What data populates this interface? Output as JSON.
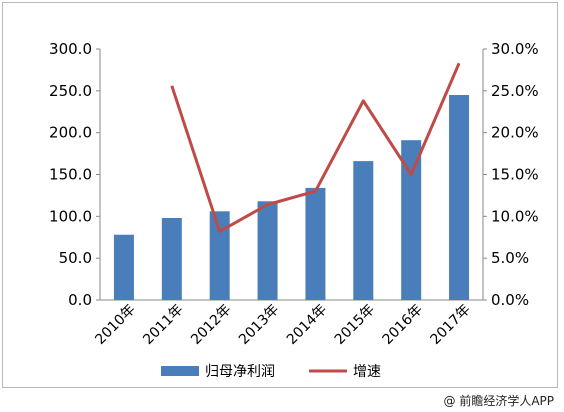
{
  "chart_data": {
    "type": "bar+line",
    "categories": [
      "2010年",
      "2011年",
      "2012年",
      "2013年",
      "2014年",
      "2015年",
      "2016年",
      "2017年"
    ],
    "series": [
      {
        "name": "归母净利润",
        "type": "bar",
        "axis": "left",
        "values": [
          78,
          98,
          106,
          118,
          134,
          166,
          191,
          245
        ]
      },
      {
        "name": "增速",
        "type": "line",
        "axis": "right",
        "values": [
          null,
          25.6,
          8.2,
          11.4,
          13.0,
          23.8,
          15.0,
          28.3
        ]
      }
    ],
    "left_axis": {
      "ylim": [
        0,
        300
      ],
      "ticks": [
        "300.0",
        "250.0",
        "200.0",
        "150.0",
        "100.0",
        "50.0",
        "0.0"
      ]
    },
    "right_axis": {
      "ylim": [
        0,
        30
      ],
      "ticks": [
        "30.0%",
        "25.0%",
        "20.0%",
        "15.0%",
        "10.0%",
        "5.0%",
        "0.0%"
      ]
    },
    "legend": {
      "position": "bottom"
    },
    "grid": false,
    "colors": {
      "bar": "#4a7ebb",
      "line": "#be4b48"
    }
  },
  "source_credit": "前瞻经济学人APP",
  "source_icon": "at-sign"
}
